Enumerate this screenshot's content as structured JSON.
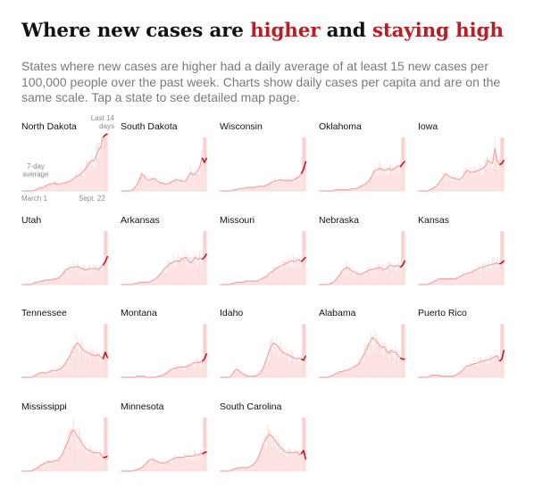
{
  "header": {
    "title_prefix": "Where new cases are ",
    "title_higher": "higher",
    "title_and": " and ",
    "title_staying": "staying high",
    "subtitle": "States where new cases are higher had a daily average of at least 15 new cases per 100,000 people over the past week. Charts show daily cases per capita and are on the same scale. Tap a state to see detailed map page."
  },
  "annotations": {
    "last14_line1": "Last 14",
    "last14_line2": "days",
    "avg_line1": "7-day",
    "avg_line2": "average",
    "x_start": "March 1",
    "x_end": "Sept. 22"
  },
  "colors": {
    "title_highlight": "#b42025",
    "line_avg": "#f4a3a3",
    "line_recent": "#c4161c",
    "bars": "#fde0e0",
    "recent_band": "#f6b9b9",
    "annotation": "#8a8a8a"
  },
  "chart_data": {
    "type": "line",
    "x_start": "March 1",
    "x_end": "Sept. 22",
    "shared_scale": true,
    "y_scale": "daily cases per capita",
    "series": [
      {
        "name": "North Dakota",
        "values": [
          0,
          0,
          0,
          0,
          0,
          0,
          1,
          2,
          3,
          3,
          4,
          5,
          6,
          6,
          7,
          6,
          6,
          6,
          7,
          7,
          8,
          9,
          10,
          12,
          13,
          14,
          16,
          18,
          21,
          24,
          27,
          26,
          30,
          36,
          38,
          47,
          49,
          50
        ]
      },
      {
        "name": "South Dakota",
        "values": [
          0,
          0,
          0,
          0,
          0,
          1,
          3,
          6,
          10,
          15,
          13,
          10,
          9,
          10,
          11,
          10,
          8,
          7,
          7,
          6,
          6,
          7,
          8,
          9,
          10,
          9,
          9,
          8,
          9,
          12,
          16,
          14,
          15,
          17,
          21,
          29,
          25,
          29
        ]
      },
      {
        "name": "Wisconsin",
        "values": [
          0,
          0,
          0,
          0,
          0,
          0,
          1,
          1,
          2,
          2,
          2,
          3,
          3,
          3,
          3,
          3,
          4,
          4,
          4,
          4,
          5,
          6,
          7,
          8,
          9,
          9,
          10,
          9,
          9,
          9,
          9,
          9,
          10,
          11,
          12,
          15,
          19,
          26
        ]
      },
      {
        "name": "Oklahoma",
        "values": [
          0,
          0,
          0,
          0,
          0,
          0,
          0,
          1,
          1,
          1,
          1,
          1,
          1,
          1,
          2,
          2,
          2,
          3,
          4,
          5,
          6,
          8,
          10,
          14,
          18,
          18,
          20,
          19,
          18,
          18,
          20,
          18,
          19,
          20,
          22,
          21,
          24,
          26
        ]
      },
      {
        "name": "Iowa",
        "values": [
          0,
          0,
          0,
          0,
          0,
          1,
          2,
          3,
          5,
          7,
          10,
          13,
          15,
          13,
          12,
          11,
          11,
          10,
          10,
          12,
          15,
          18,
          17,
          16,
          17,
          17,
          18,
          19,
          20,
          22,
          27,
          25,
          24,
          37,
          27,
          23,
          24,
          27
        ]
      },
      {
        "name": "Utah",
        "values": [
          0,
          0,
          0,
          0,
          0,
          1,
          2,
          2,
          3,
          3,
          4,
          4,
          4,
          4,
          5,
          5,
          6,
          8,
          10,
          13,
          14,
          15,
          15,
          15,
          16,
          15,
          14,
          13,
          13,
          14,
          14,
          14,
          14,
          13,
          15,
          17,
          20,
          25
        ]
      },
      {
        "name": "Arkansas",
        "values": [
          0,
          0,
          0,
          0,
          0,
          0,
          1,
          1,
          2,
          2,
          2,
          2,
          2,
          3,
          4,
          5,
          7,
          9,
          12,
          14,
          16,
          18,
          19,
          20,
          21,
          20,
          22,
          23,
          24,
          21,
          19,
          21,
          24,
          22,
          23,
          22,
          24,
          27
        ]
      },
      {
        "name": "Missouri",
        "values": [
          0,
          0,
          0,
          0,
          0,
          1,
          1,
          2,
          2,
          2,
          2,
          3,
          3,
          3,
          3,
          3,
          3,
          4,
          5,
          6,
          7,
          9,
          11,
          12,
          14,
          15,
          16,
          17,
          18,
          19,
          20,
          21,
          20,
          21,
          22,
          20,
          22,
          24
        ]
      },
      {
        "name": "Nebraska",
        "values": [
          0,
          0,
          0,
          0,
          0,
          1,
          2,
          4,
          6,
          9,
          12,
          14,
          15,
          14,
          12,
          11,
          10,
          9,
          9,
          10,
          11,
          12,
          13,
          13,
          14,
          14,
          15,
          14,
          13,
          14,
          16,
          17,
          16,
          16,
          17,
          15,
          17,
          21
        ]
      },
      {
        "name": "Kansas",
        "values": [
          0,
          0,
          0,
          0,
          0,
          1,
          2,
          3,
          4,
          5,
          5,
          5,
          5,
          5,
          5,
          5,
          5,
          6,
          7,
          8,
          9,
          10,
          10,
          11,
          12,
          13,
          14,
          15,
          15,
          16,
          17,
          17,
          18,
          18,
          19,
          18,
          19,
          21
        ]
      },
      {
        "name": "Tennessee",
        "values": [
          0,
          0,
          0,
          0,
          0,
          1,
          2,
          3,
          4,
          4,
          4,
          4,
          5,
          6,
          6,
          6,
          7,
          8,
          10,
          13,
          16,
          20,
          24,
          28,
          30,
          28,
          25,
          23,
          22,
          21,
          20,
          19,
          19,
          20,
          18,
          16,
          22,
          17
        ]
      },
      {
        "name": "Montana",
        "values": [
          0,
          0,
          0,
          0,
          0,
          0,
          0,
          1,
          1,
          1,
          1,
          0,
          0,
          0,
          0,
          0,
          1,
          1,
          2,
          3,
          4,
          6,
          7,
          8,
          8,
          9,
          9,
          9,
          9,
          10,
          11,
          12,
          13,
          13,
          13,
          14,
          16,
          21
        ]
      },
      {
        "name": "Idaho",
        "values": [
          0,
          0,
          0,
          0,
          0,
          2,
          5,
          7,
          6,
          4,
          3,
          2,
          1,
          1,
          1,
          1,
          2,
          3,
          6,
          10,
          16,
          22,
          27,
          30,
          29,
          27,
          24,
          22,
          21,
          20,
          19,
          18,
          17,
          16,
          17,
          16,
          15,
          19
        ]
      },
      {
        "name": "Alabama",
        "values": [
          0,
          0,
          0,
          0,
          0,
          1,
          2,
          3,
          4,
          5,
          5,
          6,
          6,
          7,
          8,
          9,
          10,
          12,
          15,
          19,
          23,
          27,
          31,
          35,
          33,
          31,
          28,
          26,
          27,
          23,
          21,
          24,
          22,
          22,
          19,
          17,
          16,
          16
        ]
      },
      {
        "name": "Puerto Rico",
        "values": [
          0,
          0,
          0,
          0,
          0,
          1,
          2,
          2,
          2,
          2,
          1,
          1,
          1,
          1,
          1,
          1,
          2,
          3,
          4,
          6,
          8,
          10,
          10,
          11,
          12,
          12,
          13,
          14,
          14,
          15,
          15,
          16,
          17,
          18,
          19,
          14,
          16,
          24
        ]
      },
      {
        "name": "Mississippi",
        "values": [
          0,
          0,
          0,
          0,
          0,
          1,
          2,
          3,
          5,
          6,
          7,
          8,
          8,
          8,
          9,
          9,
          10,
          13,
          17,
          22,
          27,
          32,
          36,
          34,
          30,
          28,
          24,
          21,
          19,
          18,
          17,
          16,
          16,
          16,
          15,
          12,
          12,
          13
        ]
      },
      {
        "name": "Minnesota",
        "values": [
          0,
          0,
          0,
          0,
          0,
          0,
          1,
          1,
          2,
          3,
          5,
          7,
          9,
          10,
          10,
          9,
          8,
          7,
          7,
          7,
          8,
          9,
          10,
          11,
          12,
          12,
          12,
          12,
          13,
          13,
          13,
          13,
          14,
          14,
          15,
          15,
          16,
          17
        ]
      },
      {
        "name": "South Carolina",
        "values": [
          0,
          0,
          0,
          0,
          0,
          1,
          2,
          2,
          3,
          3,
          3,
          3,
          3,
          4,
          5,
          7,
          10,
          14,
          20,
          25,
          29,
          32,
          31,
          29,
          26,
          23,
          21,
          19,
          17,
          16,
          16,
          16,
          16,
          17,
          14,
          15,
          18,
          10
        ]
      }
    ]
  }
}
